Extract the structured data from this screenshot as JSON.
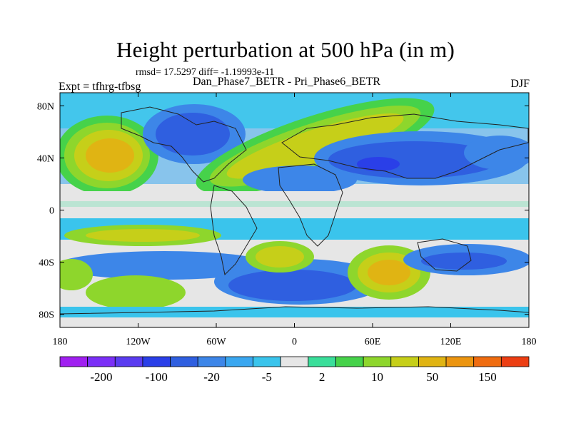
{
  "title": "Height perturbation at 500 hPa (in m)",
  "stats": "rmsd= 17.5297 diff= -1.19993e-11",
  "experiment": "Expt = tfhrg-tfbsg",
  "difference_name": "Dan_Phase7_BETR - Pri_Phase6_BETR",
  "season": "DJF",
  "lat_labels": [
    "80N",
    "40N",
    "0",
    "40S",
    "80S"
  ],
  "lon_labels": [
    "180",
    "120W",
    "60W",
    "0",
    "60E",
    "120E",
    "180"
  ],
  "lat_values": [
    80,
    40,
    0,
    -40,
    -80
  ],
  "lon_values": [
    -180,
    -120,
    -60,
    0,
    60,
    120,
    180
  ],
  "colorbar": {
    "colors": [
      "#a020f0",
      "#7b2ff7",
      "#5a3cf0",
      "#2a3fe8",
      "#2f5fe0",
      "#3d86e8",
      "#3aa7f0",
      "#3ac4ec",
      "#e6e6e6",
      "#3ade9a",
      "#46d24a",
      "#8ed62c",
      "#c6cf19",
      "#e0b413",
      "#ec9510",
      "#ef6c10",
      "#ec3e13"
    ],
    "labels": [
      "-200",
      "-100",
      "-20",
      "-5",
      "2",
      "10",
      "50",
      "150"
    ]
  },
  "map_extent": {
    "lon_min": -180,
    "lon_max": 180,
    "lat_min": -90,
    "lat_max": 90
  }
}
